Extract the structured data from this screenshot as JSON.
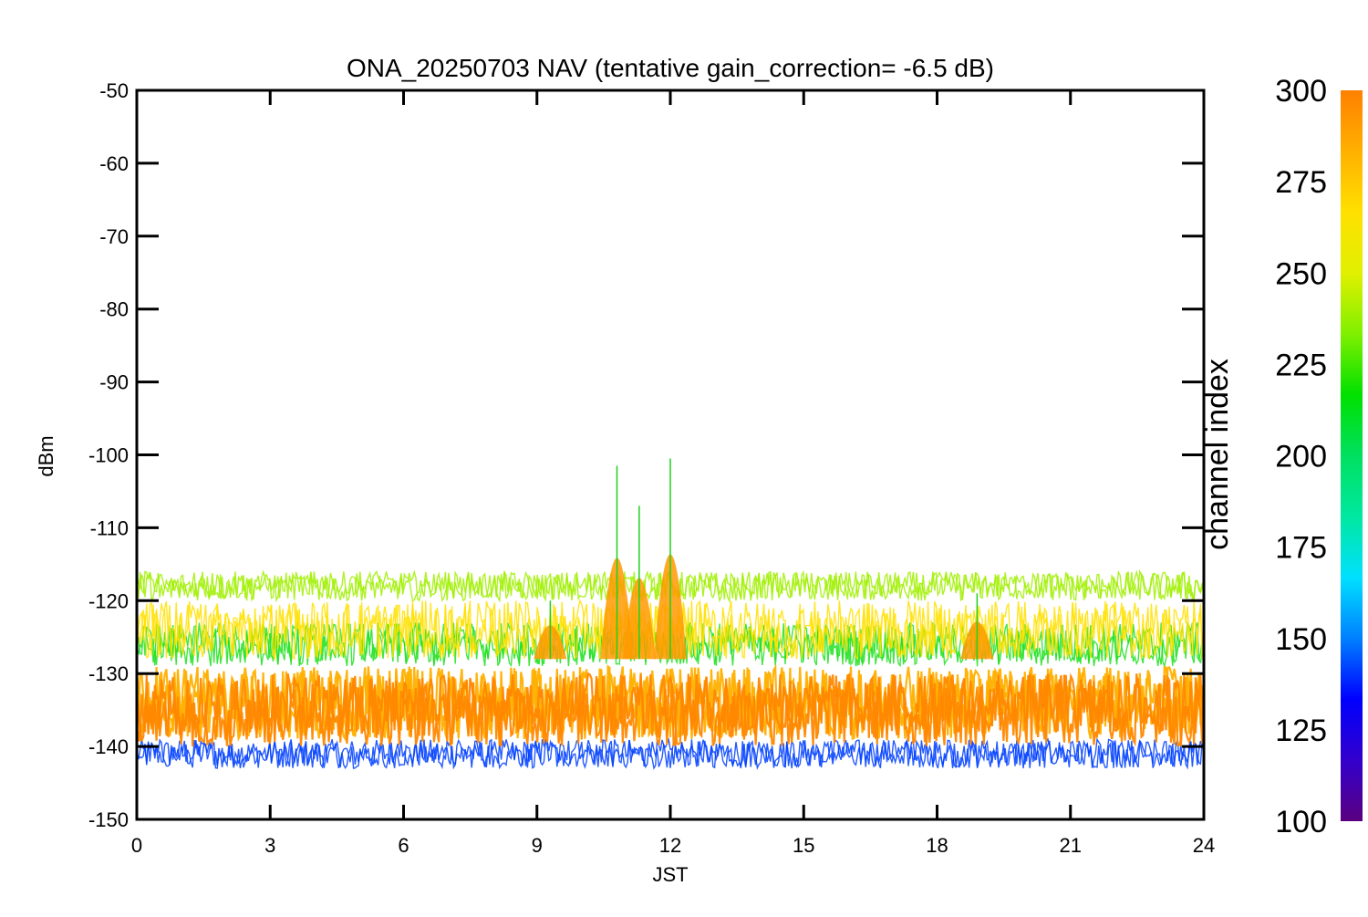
{
  "chart_data": {
    "type": "line",
    "title": "ONA_20250703 NAV (tentative gain_correction= -6.5 dB)",
    "xlabel": "JST",
    "ylabel": "dBm",
    "xlim": [
      0,
      24
    ],
    "ylim": [
      -150,
      -50
    ],
    "x_ticks": [
      0,
      3,
      6,
      9,
      12,
      15,
      18,
      21,
      24
    ],
    "x_tick_labels": [
      "0",
      "3",
      "6",
      "9",
      "12",
      "15",
      "18",
      "21",
      "24"
    ],
    "y_ticks": [
      -50,
      -60,
      -70,
      -80,
      -90,
      -100,
      -110,
      -120,
      -130,
      -140,
      -150
    ],
    "y_tick_labels": [
      "-50",
      "-60",
      "-70",
      "-80",
      "-90",
      "-100",
      "-110",
      "-120",
      "-130",
      "-140",
      "-150"
    ],
    "grid": false,
    "colorbar": {
      "label": "channel index",
      "range": [
        100,
        300
      ],
      "ticks": [
        300,
        275,
        250,
        225,
        200,
        175,
        150,
        125,
        100
      ],
      "tick_labels": [
        "300",
        "275",
        "250",
        "225",
        "200",
        "175",
        "150",
        "125",
        "100"
      ],
      "colors": [
        "#5a0080",
        "#3300cc",
        "#0000ff",
        "#0080ff",
        "#00e0ff",
        "#00e8a0",
        "#00e060",
        "#00e000",
        "#80f000",
        "#e0f000",
        "#ffe000",
        "#ffb000",
        "#ff8000"
      ]
    },
    "series": [
      {
        "channel_index": 290,
        "color": "#ff8800",
        "mean_dbm": -135,
        "spread_dbm": 5
      },
      {
        "channel_index": 280,
        "color": "#ffb000",
        "mean_dbm": -134,
        "spread_dbm": 5
      },
      {
        "channel_index": 270,
        "color": "#ffe000",
        "mean_dbm": -124,
        "spread_dbm": 4
      },
      {
        "channel_index": 255,
        "color": "#a0f000",
        "mean_dbm": -118,
        "spread_dbm": 2
      },
      {
        "channel_index": 235,
        "color": "#20e020",
        "mean_dbm": -126,
        "spread_dbm": 3
      },
      {
        "channel_index": 150,
        "color": "#0040ff",
        "mean_dbm": -141,
        "spread_dbm": 2
      }
    ],
    "features": [
      {
        "x_jst": 11.3,
        "peak_dbm": -107
      },
      {
        "x_jst": 10.8,
        "peak_dbm": -101.5
      },
      {
        "x_jst": 12.0,
        "peak_dbm": -100.5
      },
      {
        "x_jst": 9.3,
        "peak_dbm": -120
      },
      {
        "x_jst": 18.9,
        "peak_dbm": -119
      }
    ]
  }
}
